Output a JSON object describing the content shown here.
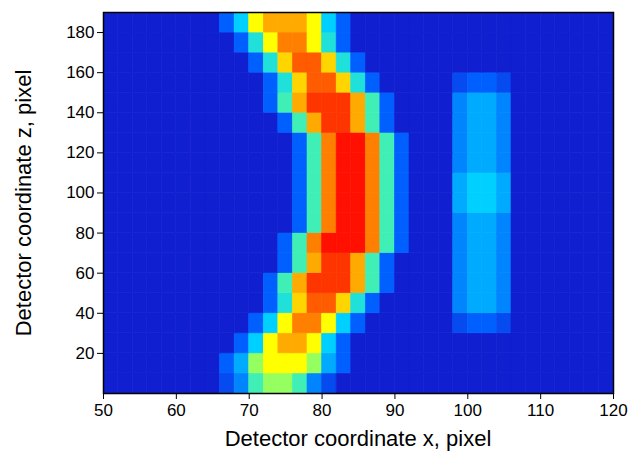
{
  "chart_data": {
    "type": "heatmap",
    "xlabel": "Detector coordinate x, pixel",
    "ylabel": "Detector coordinate z, pixel",
    "xlim": [
      50,
      120
    ],
    "ylim": [
      0,
      190
    ],
    "xticks": [
      50,
      60,
      70,
      80,
      90,
      100,
      110,
      120
    ],
    "yticks": [
      20,
      40,
      60,
      80,
      100,
      120,
      140,
      160,
      180
    ],
    "x_edges": [
      50,
      52,
      54,
      56,
      58,
      60,
      62,
      64,
      66,
      68,
      70,
      72,
      74,
      76,
      78,
      80,
      82,
      84,
      86,
      88,
      90,
      92,
      94,
      96,
      98,
      100,
      102,
      104,
      106,
      108,
      110,
      112,
      114,
      116,
      118,
      120
    ],
    "y_edges": [
      0,
      10,
      20,
      30,
      40,
      50,
      60,
      70,
      80,
      90,
      100,
      110,
      120,
      130,
      140,
      150,
      160,
      170,
      180,
      190
    ],
    "values": [
      [
        1,
        1,
        1,
        1,
        1,
        1,
        1,
        1,
        2,
        3,
        5,
        6,
        6,
        5,
        3,
        2,
        1,
        1,
        1,
        1,
        1,
        1,
        1,
        1,
        1,
        1,
        1,
        1,
        1,
        1,
        1,
        1,
        1,
        1,
        1
      ],
      [
        1,
        1,
        1,
        1,
        1,
        1,
        1,
        1,
        2.5,
        3.5,
        6,
        7,
        7,
        7,
        6,
        3.5,
        2.5,
        1,
        1,
        1,
        1,
        1,
        1,
        1,
        1,
        1,
        1,
        1,
        1,
        1,
        1,
        1,
        1,
        1,
        1
      ],
      [
        1,
        1,
        1,
        1,
        1,
        1,
        1,
        1,
        1,
        2.5,
        4,
        7,
        8,
        8,
        7,
        4,
        2.5,
        1,
        1,
        1,
        1,
        1,
        1,
        1,
        1,
        1,
        1,
        1,
        1,
        1,
        1,
        1,
        1,
        1,
        1
      ],
      [
        1,
        1,
        1,
        1,
        1,
        1,
        1,
        1,
        1,
        1,
        2.5,
        4,
        7,
        8.5,
        8.5,
        7,
        4,
        2.5,
        1,
        1,
        1,
        1,
        1,
        1,
        2,
        2.5,
        2.5,
        2,
        1,
        1,
        1,
        1,
        1,
        1,
        1
      ],
      [
        1,
        1,
        1,
        1,
        1,
        1,
        1,
        1,
        1,
        1,
        1,
        2.5,
        4.5,
        7.5,
        9,
        9,
        7.5,
        4.5,
        2.5,
        1,
        1,
        1,
        1,
        1,
        3,
        3.5,
        3.5,
        3,
        1,
        1,
        1,
        1,
        1,
        1,
        1
      ],
      [
        1,
        1,
        1,
        1,
        1,
        1,
        1,
        1,
        1,
        1,
        1,
        2.5,
        5,
        8,
        9.5,
        9.5,
        9.5,
        8,
        5,
        2.5,
        1,
        1,
        1,
        1,
        3,
        3.5,
        3.5,
        3,
        1,
        1,
        1,
        1,
        1,
        1,
        1
      ],
      [
        1,
        1,
        1,
        1,
        1,
        1,
        1,
        1,
        1,
        1,
        1,
        1,
        2.5,
        5,
        8,
        9.5,
        9.5,
        8,
        5,
        2.5,
        1,
        1,
        1,
        1,
        3,
        3.5,
        3.5,
        3,
        1,
        1,
        1,
        1,
        1,
        1,
        1
      ],
      [
        1,
        1,
        1,
        1,
        1,
        1,
        1,
        1,
        1,
        1,
        1,
        1,
        2.5,
        5,
        8.5,
        10,
        10,
        10,
        8.5,
        5,
        2.5,
        1,
        1,
        1,
        3,
        3.5,
        3.5,
        3,
        1,
        1,
        1,
        1,
        1,
        1,
        1
      ],
      [
        1,
        1,
        1,
        1,
        1,
        1,
        1,
        1,
        1,
        1,
        1,
        1,
        1,
        2.5,
        5,
        8.5,
        10,
        10,
        8.5,
        5,
        2.5,
        1,
        1,
        1,
        3,
        3.5,
        3.5,
        3,
        1,
        1,
        1,
        1,
        1,
        1,
        1
      ],
      [
        1,
        1,
        1,
        1,
        1,
        1,
        1,
        1,
        1,
        1,
        1,
        1,
        1,
        2.5,
        5,
        8.5,
        10,
        10,
        8.5,
        5,
        2.5,
        1,
        1,
        1,
        3.5,
        4,
        4,
        3.5,
        1,
        1,
        1,
        1,
        1,
        1,
        1
      ],
      [
        1,
        1,
        1,
        1,
        1,
        1,
        1,
        1,
        1,
        1,
        1,
        1,
        1,
        2.5,
        5,
        8.5,
        10,
        10,
        8.5,
        5,
        2.5,
        1,
        1,
        1,
        3.5,
        4,
        4,
        3.5,
        1,
        1,
        1,
        1,
        1,
        1,
        1
      ],
      [
        1,
        1,
        1,
        1,
        1,
        1,
        1,
        1,
        1,
        1,
        1,
        1,
        1,
        2.5,
        5,
        8.5,
        10,
        10,
        8.5,
        5,
        2.5,
        1,
        1,
        1,
        3,
        3.5,
        3.5,
        3,
        1,
        1,
        1,
        1,
        1,
        1,
        1
      ],
      [
        1,
        1,
        1,
        1,
        1,
        1,
        1,
        1,
        1,
        1,
        1,
        1,
        1,
        2.5,
        5,
        8.5,
        10,
        10,
        8.5,
        5,
        2.5,
        1,
        1,
        1,
        3,
        3.5,
        3.5,
        3,
        1,
        1,
        1,
        1,
        1,
        1,
        1
      ],
      [
        1,
        1,
        1,
        1,
        1,
        1,
        1,
        1,
        1,
        1,
        1,
        1,
        2.5,
        5,
        8,
        9.5,
        9.5,
        8,
        5,
        2.5,
        1,
        1,
        1,
        1,
        3,
        3.5,
        3.5,
        3,
        1,
        1,
        1,
        1,
        1,
        1,
        1
      ],
      [
        1,
        1,
        1,
        1,
        1,
        1,
        1,
        1,
        1,
        1,
        1,
        2.5,
        5,
        8,
        9.5,
        9.5,
        9.5,
        8,
        5,
        2.5,
        1,
        1,
        1,
        1,
        3,
        3.5,
        3.5,
        3,
        1,
        1,
        1,
        1,
        1,
        1,
        1
      ],
      [
        1,
        1,
        1,
        1,
        1,
        1,
        1,
        1,
        1,
        1,
        1,
        2.5,
        4.5,
        7.5,
        9,
        9,
        7.5,
        4.5,
        2.5,
        1,
        1,
        1,
        1,
        1,
        2,
        2.5,
        2.5,
        2,
        1,
        1,
        1,
        1,
        1,
        1,
        1
      ],
      [
        1,
        1,
        1,
        1,
        1,
        1,
        1,
        1,
        1,
        1,
        2.5,
        4.5,
        7.5,
        9,
        9,
        7.5,
        4.5,
        2.5,
        1,
        1,
        1,
        1,
        1,
        1,
        1,
        1,
        1,
        1,
        1,
        1,
        1,
        1,
        1,
        1,
        1
      ],
      [
        1,
        1,
        1,
        1,
        1,
        1,
        1,
        1,
        1,
        2.5,
        4.5,
        7,
        8.5,
        8.5,
        7,
        4.5,
        2.5,
        1,
        1,
        1,
        1,
        1,
        1,
        1,
        1,
        1,
        1,
        1,
        1,
        1,
        1,
        1,
        1,
        1,
        1
      ],
      [
        1,
        1,
        1,
        1,
        1,
        1,
        1,
        1,
        2.5,
        4,
        7,
        8,
        8,
        8,
        7,
        4,
        2.5,
        1,
        1,
        1,
        1,
        1,
        1,
        1,
        1,
        1,
        1,
        1,
        1,
        1,
        1,
        1,
        1,
        1,
        1
      ]
    ]
  }
}
